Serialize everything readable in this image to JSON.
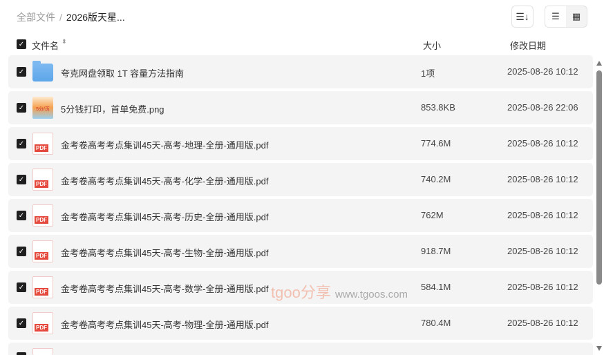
{
  "breadcrumb": {
    "root": "全部文件",
    "separator": "/",
    "current": "2026版天星..."
  },
  "toolbar": {
    "sort_icon": "sort-icon",
    "list_view_icon": "list-view-icon",
    "grid_view_icon": "grid-view-icon",
    "active_view": "list"
  },
  "columns": {
    "name": "文件名",
    "size": "大小",
    "modified": "修改日期"
  },
  "files": [
    {
      "name": "夸克网盘领取 1T 容量方法指南",
      "size": "1项",
      "date": "2025-08-26 10:12",
      "type": "folder",
      "checked": true
    },
    {
      "name": "5分钱打印，首单免费.png",
      "size": "853.8KB",
      "date": "2025-08-26 22:06",
      "type": "image",
      "thumb_text": "5分/页",
      "checked": true
    },
    {
      "name": "金考卷高考考点集训45天-高考-地理-全册-通用版.pdf",
      "size": "774.6M",
      "date": "2025-08-26 10:12",
      "type": "pdf",
      "checked": true
    },
    {
      "name": "金考卷高考考点集训45天-高考-化学-全册-通用版.pdf",
      "size": "740.2M",
      "date": "2025-08-26 10:12",
      "type": "pdf",
      "checked": true
    },
    {
      "name": "金考卷高考考点集训45天-高考-历史-全册-通用版.pdf",
      "size": "762M",
      "date": "2025-08-26 10:12",
      "type": "pdf",
      "checked": true
    },
    {
      "name": "金考卷高考考点集训45天-高考-生物-全册-通用版.pdf",
      "size": "918.7M",
      "date": "2025-08-26 10:12",
      "type": "pdf",
      "checked": true
    },
    {
      "name": "金考卷高考考点集训45天-高考-数学-全册-通用版.pdf",
      "size": "584.1M",
      "date": "2025-08-26 10:12",
      "type": "pdf",
      "checked": true
    },
    {
      "name": "金考卷高考考点集训45天-高考-物理-全册-通用版.pdf",
      "size": "780.4M",
      "date": "2025-08-26 10:12",
      "type": "pdf",
      "checked": true
    },
    {
      "name": "",
      "size": "",
      "date": "",
      "type": "pdf",
      "checked": true
    }
  ],
  "pdf_label": "PDF",
  "watermark": {
    "brand": "tgoo分享",
    "url": "www.tgoos.com"
  }
}
